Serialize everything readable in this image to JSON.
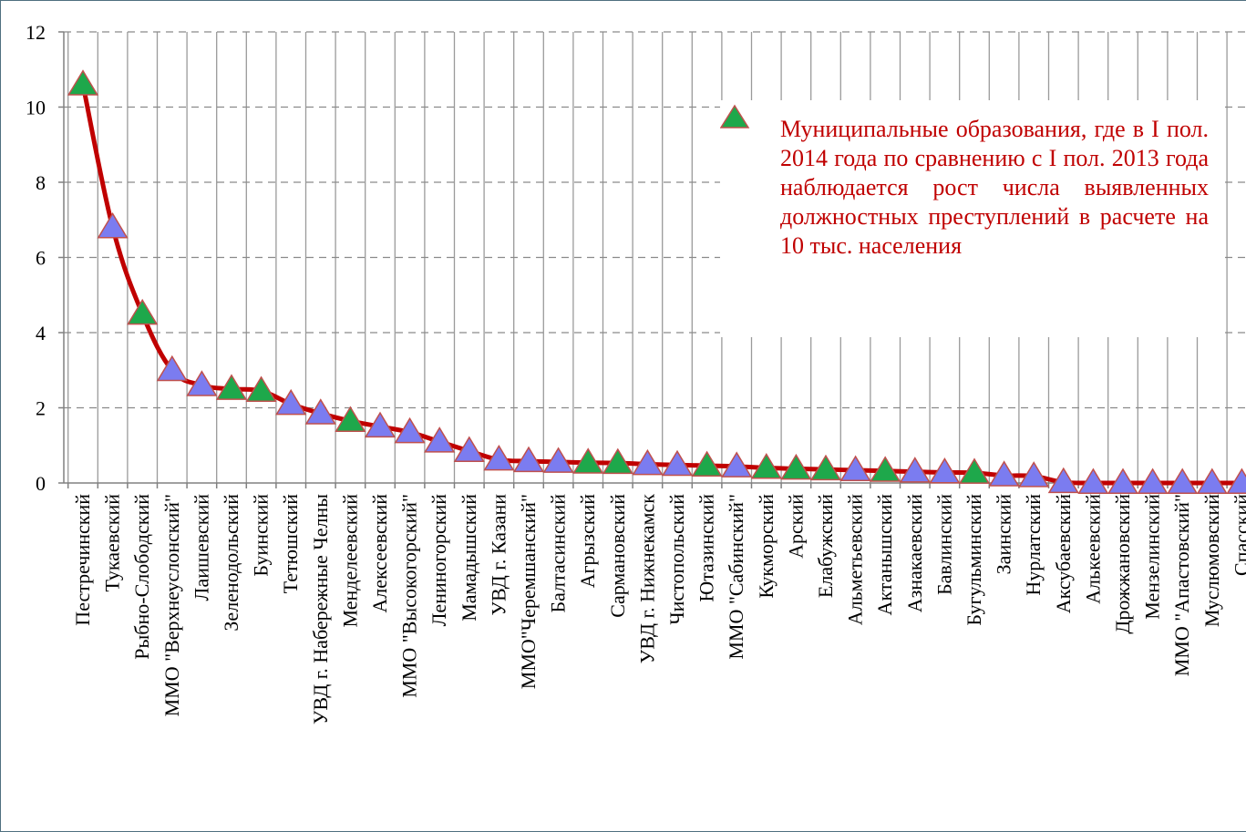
{
  "chart_data": {
    "type": "line",
    "y_ticks": [
      0,
      2,
      4,
      6,
      8,
      10,
      12
    ],
    "ylim": [
      0,
      12
    ],
    "grid": "dashed horizontal, solid vertical",
    "colors": {
      "line": "#c00000",
      "increase": "#1ea84b",
      "normal": "#7b7cf0",
      "edge": "#c0504d"
    },
    "legend": {
      "marker": "increase",
      "text": "Муниципальные образования, где в I пол. 2014 года по сравнению с I пол. 2013 года наблюдается рост числа выявленных должностных преступлений в расчете на 10 тыс. населения"
    },
    "categories": [
      "Пестречинский",
      "Тукаевский",
      "Рыбно-Слободский",
      "ММО \"Верхнеуслонский\"",
      "Лаишевский",
      "Зеленодольский",
      "Буинский",
      "Тетюшский",
      "УВД г. Набережные Челны",
      "Менделеевский",
      "Алексеевский",
      "ММО \"Высокогорский\"",
      "Лениногорский",
      "Мамадышский",
      "УВД г. Казани",
      "ММО\"Черемшанский\"",
      "Балтасинский",
      "Агрызский",
      "Сармановский",
      "УВД г. Нижнекамск",
      "Чистопольский",
      "Ютазинский",
      "ММО \"Сабинский\"",
      "Кукморский",
      "Арский",
      "Елабужский",
      "Альметьевский",
      "Актанышский",
      "Азнакаевский",
      "Бавлинский",
      "Бугульминский",
      "Заинский",
      "Нурлатский",
      "Аксубаевский",
      "Алькеевский",
      "Дрожжановский",
      "Мензелинский",
      "ММО \"Апастовский\"",
      "Муслюмовский",
      "Спасский"
    ],
    "values": [
      10.6,
      6.8,
      4.5,
      3.0,
      2.6,
      2.5,
      2.45,
      2.1,
      1.85,
      1.65,
      1.5,
      1.35,
      1.1,
      0.85,
      0.62,
      0.58,
      0.56,
      0.54,
      0.53,
      0.5,
      0.48,
      0.46,
      0.44,
      0.4,
      0.38,
      0.36,
      0.34,
      0.32,
      0.3,
      0.28,
      0.27,
      0.2,
      0.18,
      0.02,
      0.0,
      0.0,
      0.0,
      0.0,
      0.0,
      0.0
    ],
    "marker_groups": [
      "increase",
      "normal",
      "increase",
      "normal",
      "normal",
      "increase",
      "increase",
      "normal",
      "normal",
      "increase",
      "normal",
      "normal",
      "normal",
      "normal",
      "normal",
      "normal",
      "normal",
      "increase",
      "increase",
      "normal",
      "normal",
      "increase",
      "normal",
      "increase",
      "increase",
      "increase",
      "normal",
      "increase",
      "normal",
      "normal",
      "increase",
      "normal",
      "normal",
      "normal",
      "normal",
      "normal",
      "normal",
      "normal",
      "normal",
      "normal"
    ]
  }
}
